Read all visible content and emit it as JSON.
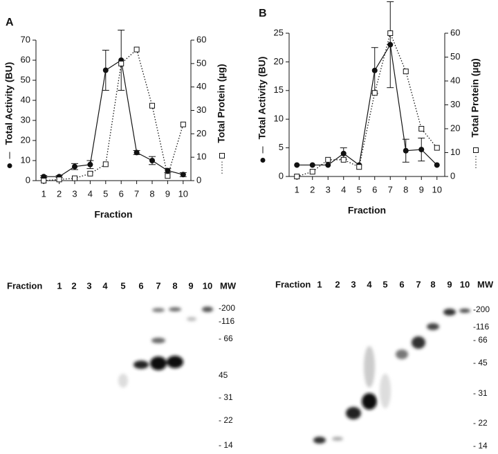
{
  "chart_data": [
    {
      "type": "line",
      "panel": "A",
      "x_label": "Fraction",
      "y_label": "Total Activity (BU)",
      "y2_label": "Total Protein (µg)",
      "x": [
        1,
        2,
        3,
        4,
        5,
        6,
        7,
        8,
        9,
        10
      ],
      "xlim": [
        0.5,
        10.5
      ],
      "xticks": [
        1,
        2,
        3,
        4,
        5,
        6,
        7,
        8,
        9,
        10
      ],
      "ylim": [
        0,
        70
      ],
      "yticks": [
        0,
        10,
        20,
        30,
        40,
        50,
        60,
        70
      ],
      "y2lim": [
        0,
        60
      ],
      "y2ticks": [
        0,
        10,
        20,
        30,
        40,
        50,
        60
      ],
      "series": [
        {
          "name": "Total Activity (BU)",
          "color": "#111111",
          "values": [
            2,
            2,
            7,
            8,
            55,
            60,
            14,
            10,
            5,
            3
          ],
          "errors": [
            0.5,
            0.5,
            1.5,
            2,
            10,
            15,
            1,
            2,
            1,
            1
          ]
        },
        {
          "name": "Total Protein (µg)",
          "color": "#111111",
          "axis": "y2",
          "values": [
            0,
            0.5,
            1,
            3,
            7,
            50,
            56,
            32,
            2,
            24
          ]
        }
      ]
    },
    {
      "type": "line",
      "panel": "B",
      "x_label": "Fraction",
      "y_label": "Total Activity (BU)",
      "y2_label": "Total Protein (µg)",
      "x": [
        1,
        2,
        3,
        4,
        5,
        6,
        7,
        8,
        9,
        10
      ],
      "xlim": [
        0.5,
        10.5
      ],
      "xticks": [
        1,
        2,
        3,
        4,
        5,
        6,
        7,
        8,
        9,
        10
      ],
      "ylim": [
        0,
        25
      ],
      "yticks": [
        0,
        5,
        10,
        15,
        20,
        25
      ],
      "y2lim": [
        0,
        60
      ],
      "y2ticks": [
        0,
        10,
        20,
        30,
        40,
        50,
        60
      ],
      "series": [
        {
          "name": "Total Activity (BU)",
          "color": "#111111",
          "values": [
            2,
            2,
            2,
            4,
            2,
            18.5,
            23,
            4.5,
            4.7,
            2
          ],
          "errors": [
            0,
            0,
            0,
            1,
            0,
            4,
            7.5,
            2,
            2,
            0
          ]
        },
        {
          "name": "Total Protein (µg)",
          "color": "#111111",
          "axis": "y2",
          "values": [
            0,
            2,
            7,
            7,
            4,
            35,
            60,
            44,
            20,
            12
          ]
        }
      ]
    }
  ],
  "gels": [
    {
      "lane_header": "Fraction",
      "lanes": [
        "1",
        "2",
        "3",
        "4",
        "5",
        "6",
        "7",
        "8",
        "9",
        "10"
      ],
      "mw_header": "MW",
      "markers": [
        "-200",
        "-116",
        "- 66",
        "45",
        "- 31",
        "- 22",
        "- 14"
      ]
    },
    {
      "lane_header": "Fraction",
      "lanes": [
        "1",
        "2",
        "3",
        "4",
        "5",
        "6",
        "7",
        "8",
        "9",
        "10"
      ],
      "mw_header": "MW",
      "markers": [
        "-200",
        "-116",
        "- 66",
        "- 45",
        "- 31",
        "- 22",
        "- 14"
      ]
    }
  ]
}
